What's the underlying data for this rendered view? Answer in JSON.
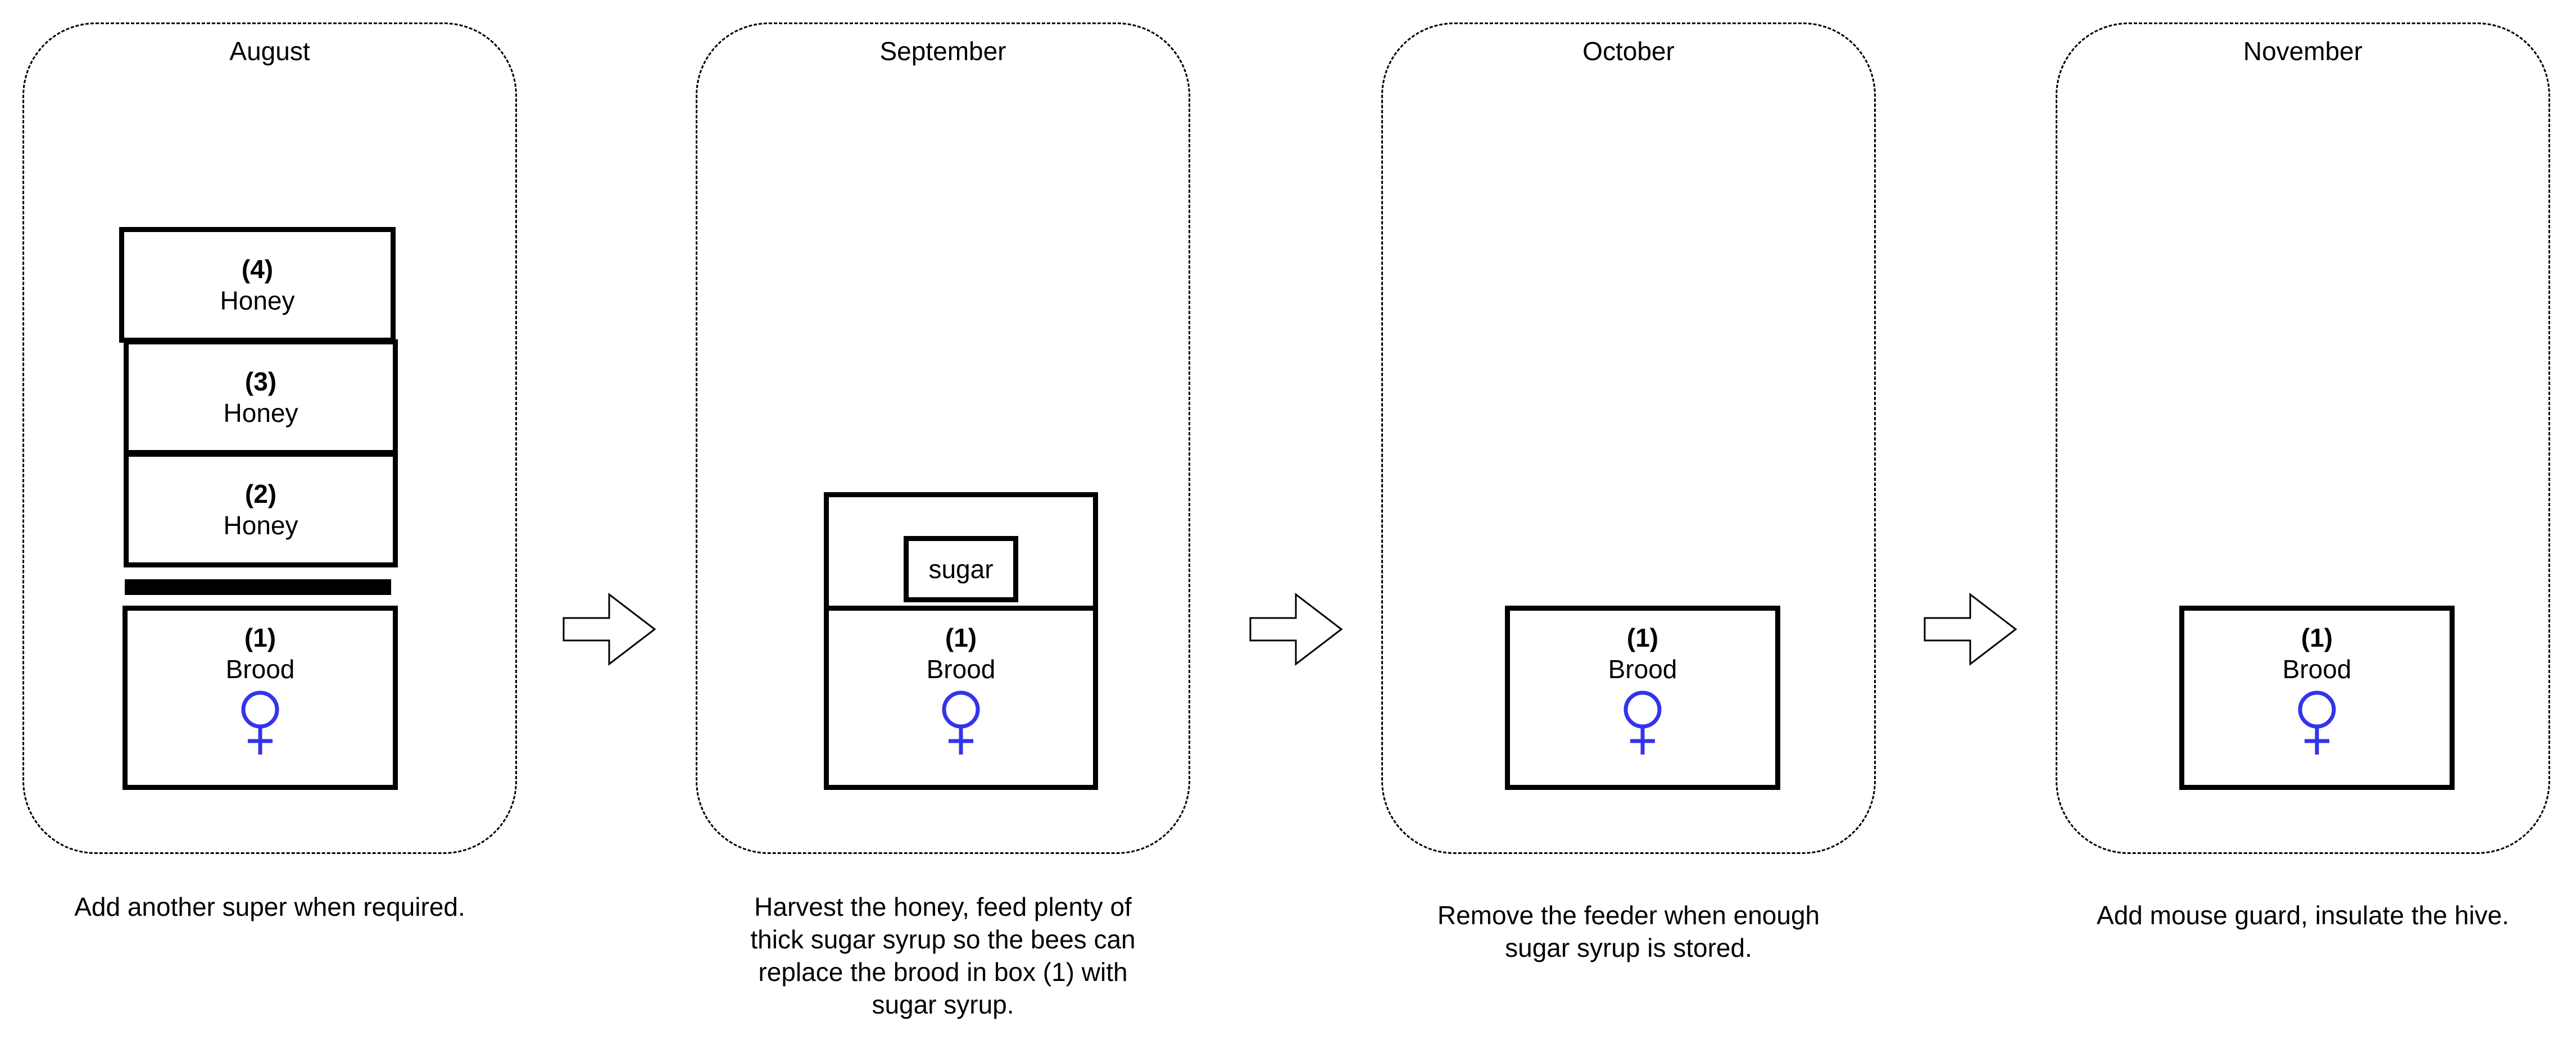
{
  "stages": [
    {
      "month": "August",
      "caption": "Add another super when required.",
      "boxes": [
        {
          "num": "(4)",
          "kind": "Honey"
        },
        {
          "num": "(3)",
          "kind": "Honey"
        },
        {
          "num": "(2)",
          "kind": "Honey"
        },
        {
          "num": "(1)",
          "kind": "Brood"
        }
      ],
      "queen_excluder": true
    },
    {
      "month": "September",
      "caption": "Harvest the honey, feed plenty of thick sugar syrup so the bees can replace the brood in box (1) with sugar syrup.",
      "feeder_label": "sugar",
      "boxes": [
        {
          "num": "(1)",
          "kind": "Brood"
        }
      ]
    },
    {
      "month": "October",
      "caption": "Remove the feeder when enough sugar syrup is stored.",
      "boxes": [
        {
          "num": "(1)",
          "kind": "Brood"
        }
      ]
    },
    {
      "month": "November",
      "caption": "Add mouse guard, insulate the hive.",
      "boxes": [
        {
          "num": "(1)",
          "kind": "Brood"
        }
      ]
    }
  ],
  "queen_icon": "female-symbol-icon",
  "arrow_icon": "right-arrow-icon",
  "colors": {
    "queen": "#3333ee",
    "outline": "#000000",
    "background": "#ffffff"
  }
}
